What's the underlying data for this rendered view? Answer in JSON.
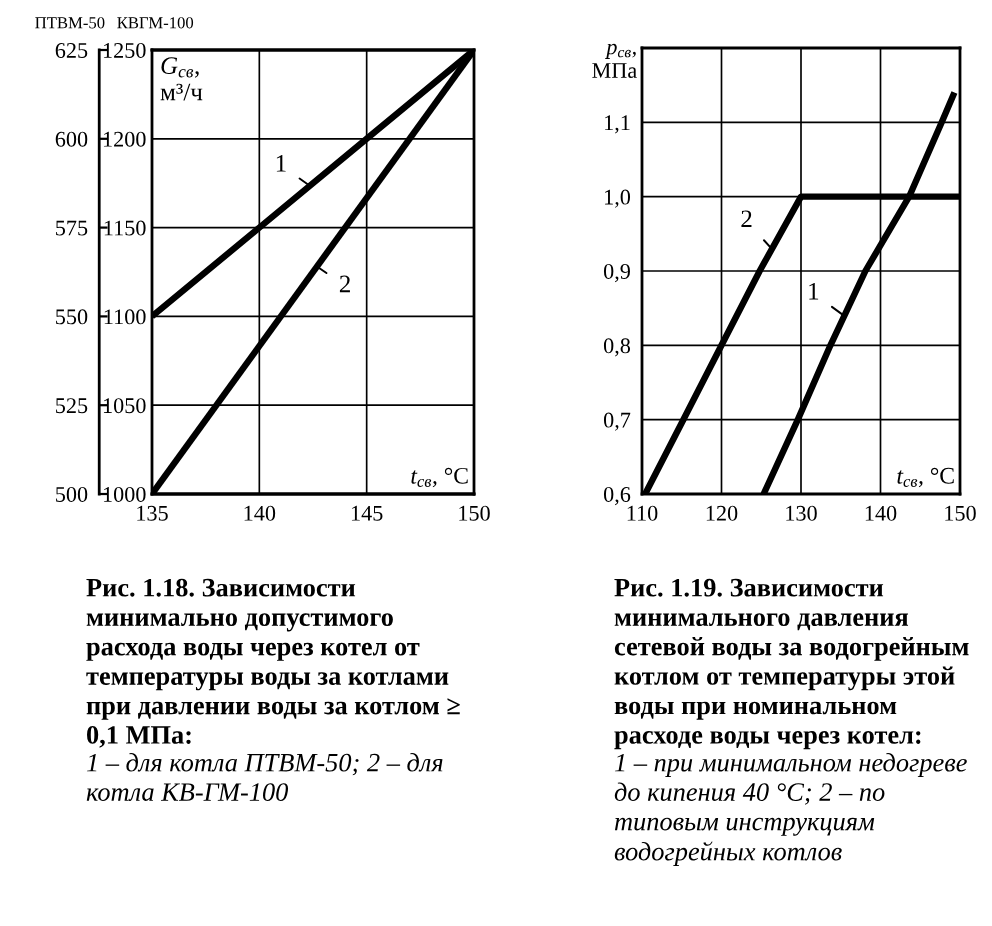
{
  "chart_data": [
    {
      "type": "line",
      "title": "Рис. 1.18. Зависимости минимально допустимого расхода воды через котел от температуры воды за котлами при давлении воды за котлом ≥ 0,1 МПа:",
      "subtitle": "1 – для котла ПТВМ-50; 2 – для котла КВ-ГМ-100",
      "xlabel": "t$_{св}$, °C",
      "ylabel": "ПТВМ-50",
      "y2label": "КВГМ-100",
      "annotations": [
        "G$_{св}$, м³/ч",
        {
          "text": "1",
          "x": 142.3,
          "y": 587
        },
        {
          "text": "2",
          "x": 142.7,
          "y": 564
        }
      ],
      "xlim": [
        135,
        150
      ],
      "xticks": [
        135,
        140,
        145,
        150
      ],
      "ylim": [
        500,
        625
      ],
      "yticks": [
        500,
        525,
        550,
        575,
        600,
        625
      ],
      "y2lim": [
        1000,
        1250
      ],
      "y2ticks": [
        1000,
        1050,
        1100,
        1150,
        1200,
        1250
      ],
      "grid": true,
      "series": [
        {
          "color": "#000000",
          "x": [
            135,
            140,
            145,
            150
          ],
          "values": [
            550,
            575,
            600,
            625
          ]
        },
        {
          "color": "#000000",
          "axis": "y2",
          "x": [
            135,
            150
          ],
          "values": [
            1000,
            1250
          ]
        }
      ]
    },
    {
      "type": "line",
      "title": "Рис. 1.19. Зависимости минимального давления сетевой воды за водогрейным котлом от температуры этой воды при номинальном расходе воды через котел:",
      "subtitle": "1 – при минимальном недогреве до кипения 40 °C; 2 – по типовым инструкциям водогрейных котлов",
      "xlabel": "t$_{св}$, °C",
      "ylabel": "p$_{св}$, МПа",
      "annotations": [
        {
          "text": "2",
          "x": 126.3,
          "y": 0.93
        },
        {
          "text": "1",
          "x": 135.4,
          "y": 0.84
        }
      ],
      "xlim": [
        110,
        150
      ],
      "xticks": [
        110,
        120,
        130,
        140,
        150
      ],
      "ylim": [
        0.6,
        1.2
      ],
      "yticks": [
        {
          "value": 0.6,
          "label": "0,6"
        },
        {
          "value": 0.7,
          "label": "0,7"
        },
        {
          "value": 0.8,
          "label": "0,8"
        },
        {
          "value": 0.9,
          "label": "0,9"
        },
        {
          "value": 1.0,
          "label": "1,0"
        },
        {
          "value": 1.1,
          "label": "1,1"
        }
      ],
      "grid": true,
      "series": [
        {
          "color": "#000000",
          "x": [
            125.3,
            129.6,
            133.7,
            138.1,
            143.6,
            147.7,
            149.3
          ],
          "values": [
            0.6,
            0.7,
            0.8,
            0.9,
            1.0,
            1.1,
            1.14
          ]
        },
        {
          "color": "#000000",
          "x": [
            110.4,
            115.2,
            120,
            124.8,
            130,
            150
          ],
          "values": [
            0.6,
            0.7,
            0.8,
            0.9,
            1.0,
            1.0
          ]
        }
      ]
    }
  ]
}
